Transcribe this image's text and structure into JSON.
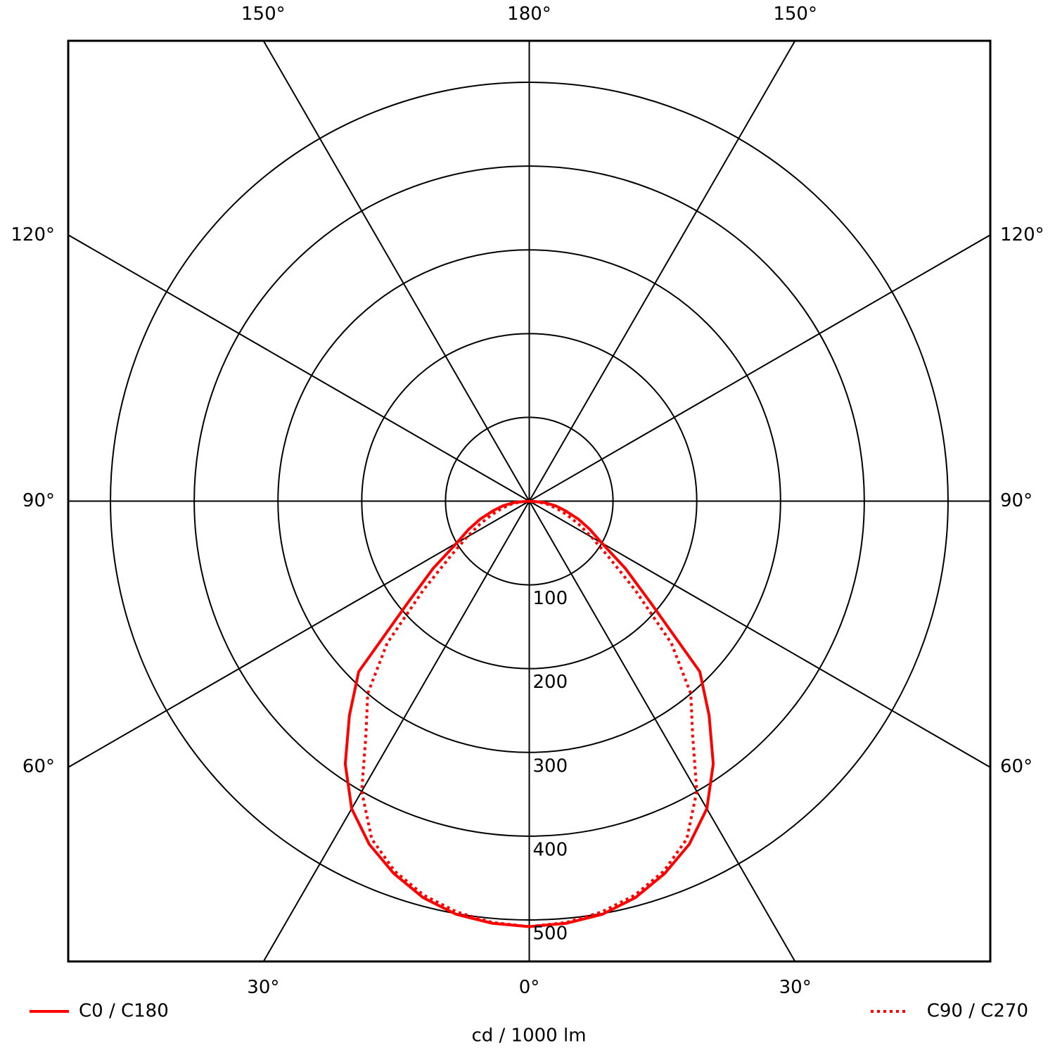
{
  "chart_data": {
    "type": "polar",
    "x": [
      0,
      5,
      10,
      15,
      20,
      25,
      30,
      35,
      40,
      45,
      50,
      55,
      60,
      65,
      70,
      75,
      80,
      85,
      90
    ],
    "series": [
      {
        "name": "C0 / C180",
        "color": "#ff0000",
        "dash": "solid",
        "values": [
          508,
          506,
          501,
          490,
          473,
          452,
          424,
          383,
          334,
          288,
          190,
          140,
          100,
          80,
          62,
          45,
          32,
          17,
          0
        ]
      },
      {
        "name": "C90 / C270",
        "color": "#ff0000",
        "dash": "dotted",
        "values": [
          508,
          505,
          498,
          487,
          470,
          445,
          400,
          340,
          300,
          240,
          165,
          115,
          86,
          65,
          48,
          34,
          22,
          10,
          0
        ]
      }
    ],
    "rlim": [
      0,
      550
    ],
    "rticks": [
      100,
      200,
      300,
      400,
      500
    ],
    "angle_ticks": [
      {
        "value": 0,
        "label": "0°"
      },
      {
        "value": 30,
        "label": "30°"
      },
      {
        "value": 60,
        "label": "60°"
      },
      {
        "value": 90,
        "label": "90°"
      },
      {
        "value": 120,
        "label": "120°"
      },
      {
        "value": 150,
        "label": "150°"
      },
      {
        "value": 180,
        "label": "180°"
      }
    ],
    "r_label": "cd / 1000 lm",
    "legend": "bottom"
  }
}
